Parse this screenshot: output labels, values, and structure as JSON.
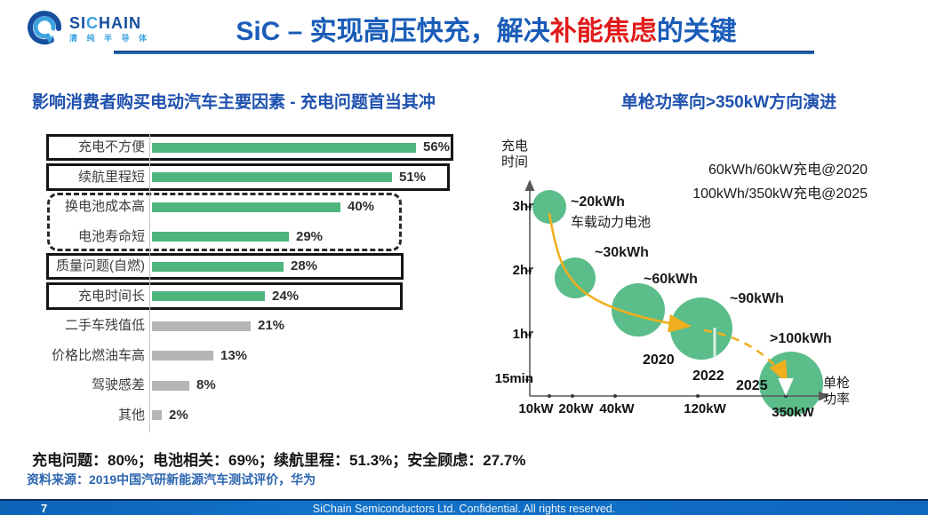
{
  "colors": {
    "title_blue": "#1A5CB8",
    "accent_red": "#E21B1B",
    "bar_green": "#4FB57E",
    "bar_gray": "#B5B5B5",
    "bubble_green": "#5BBD89",
    "curve_yellow": "#EFAF1E",
    "footer_blue": "#0E6FC4",
    "source_blue": "#2E66B0"
  },
  "header": {
    "logo_brand_pre": "SI",
    "logo_brand_c": "C",
    "logo_brand_post": "HAIN",
    "logo_subtitle": "清 纯 半 导 体",
    "title_prefix": "SiC – 实现高压快充，解决",
    "title_highlight": "补能焦虑",
    "title_suffix": "的关键"
  },
  "left_chart": {
    "title": "影响消费者购买电动汽车主要因素 - 充电问题首当其冲"
  },
  "right_chart": {
    "title": "单枪功率向>350kW方向演进",
    "y_axis": {
      "label_line1": "充电",
      "label_line2": "时间",
      "ticks": [
        "3hr",
        "2hr",
        "1hr",
        "15min"
      ]
    },
    "x_axis": {
      "label_line1": "单枪",
      "label_line2": "功率",
      "ticks": [
        "10kW",
        "20kW",
        "40kW",
        "120kW",
        "350kW"
      ]
    },
    "annotations": [
      "60kWh/60kW充电@2020",
      "100kWh/350kW充电@2025"
    ],
    "bubble_labels": [
      "~20kWh",
      "车载动力电池",
      "~30kWh",
      "~60kWh",
      "~90kWh",
      ">100kWh"
    ],
    "year_labels": [
      "2020",
      "2022",
      "2025"
    ]
  },
  "summary": "充电问题：80%；电池相关：69%；续航里程：51.3%；安全顾虑：27.7%",
  "source": "资料来源：2019中国汽研新能源汽车测试评价，华为",
  "footer": {
    "page": "7",
    "text": "SiChain Semiconductors Ltd. Confidential. All rights reserved."
  },
  "chart_data": [
    {
      "type": "bar",
      "orientation": "horizontal",
      "title": "影响消费者购买电动汽车主要因素 - 充电问题首当其冲",
      "categories": [
        "充电不方便",
        "续航里程短",
        "换电池成本高",
        "电池寿命短",
        "质量问题(自燃)",
        "充电时间长",
        "二手车残值低",
        "价格比燃油车高",
        "驾驶感差",
        "其他"
      ],
      "values": [
        56,
        51,
        40,
        29,
        28,
        24,
        21,
        13,
        8,
        2
      ],
      "display_values": [
        "56%",
        "51%",
        "40%",
        "29%",
        "28%",
        "24%",
        "21%",
        "13%",
        "8%",
        "2%"
      ],
      "bar_colors": [
        "green",
        "green",
        "green",
        "green",
        "green",
        "green",
        "gray",
        "gray",
        "gray",
        "gray"
      ],
      "highlight_frames": [
        {
          "rows": [
            0
          ],
          "style": "solid"
        },
        {
          "rows": [
            1
          ],
          "style": "solid"
        },
        {
          "rows": [
            2,
            3
          ],
          "style": "dashed"
        },
        {
          "rows": [
            4
          ],
          "style": "solid"
        },
        {
          "rows": [
            5
          ],
          "style": "solid"
        }
      ],
      "xlabel": "",
      "ylabel": "",
      "xlim": [
        0,
        60
      ],
      "grid": false
    },
    {
      "type": "scatter",
      "subtype": "bubble",
      "title": "单枪功率向>350kW方向演进",
      "xlabel": "单枪功率",
      "ylabel": "充电时间",
      "x_tick_labels": [
        "10kW",
        "20kW",
        "40kW",
        "120kW",
        "350kW"
      ],
      "y_tick_labels": [
        "15min",
        "1hr",
        "2hr",
        "3hr"
      ],
      "points": [
        {
          "label": "~20kWh 车载动力电池",
          "x_kW": 10,
          "y_hours": 3.0,
          "bubble_size": 1
        },
        {
          "label": "~30kWh",
          "x_kW": 20,
          "y_hours": 2.0,
          "bubble_size": 2
        },
        {
          "label": "~60kWh",
          "x_kW": 40,
          "y_hours": 1.6,
          "bubble_size": 3
        },
        {
          "label": "~90kWh",
          "x_kW": 120,
          "y_hours": 1.3,
          "bubble_size": 4,
          "year": "2020/2022"
        },
        {
          "label": ">100kWh",
          "x_kW": 350,
          "y_hours": 0.25,
          "bubble_size": 5,
          "year": "2025"
        }
      ],
      "annotations": [
        "60kWh/60kW充电@2020",
        "100kWh/350kW充电@2025",
        "2020",
        "2022",
        "2025"
      ],
      "trend_line": "yellow dashed arrow descending toward 350kW",
      "grid": false,
      "legend": "none"
    }
  ]
}
